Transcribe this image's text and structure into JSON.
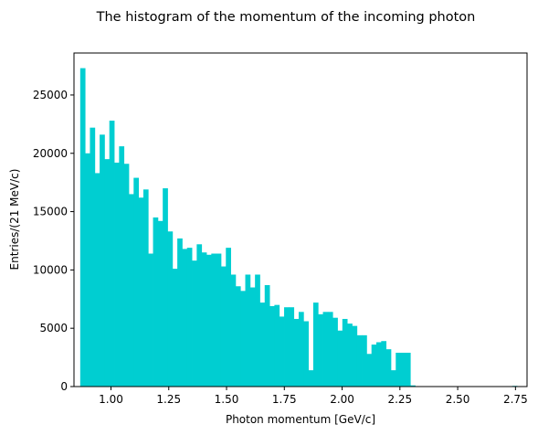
{
  "chart_data": {
    "type": "bar",
    "title": "The histogram of the momentum of the incoming photon",
    "xlabel": "Photon momentum [GeV/c]",
    "ylabel": "Entries/(21 MeV/c)",
    "xlim": [
      0.84,
      2.8
    ],
    "ylim": [
      0,
      28600
    ],
    "bin_width": 0.021,
    "x_ticks": [
      "1.00",
      "1.25",
      "1.50",
      "1.75",
      "2.00",
      "2.25",
      "2.50",
      "2.75"
    ],
    "y_ticks": [
      "0",
      "5000",
      "10000",
      "15000",
      "20000",
      "25000"
    ],
    "bar_color": "#00CED1",
    "grid": false,
    "legend": "none",
    "bins": [
      {
        "x": 0.867,
        "y": 27300
      },
      {
        "x": 0.888,
        "y": 20000
      },
      {
        "x": 0.909,
        "y": 22200
      },
      {
        "x": 0.93,
        "y": 18300
      },
      {
        "x": 0.951,
        "y": 21600
      },
      {
        "x": 0.972,
        "y": 19500
      },
      {
        "x": 0.993,
        "y": 22800
      },
      {
        "x": 1.014,
        "y": 19200
      },
      {
        "x": 1.035,
        "y": 20600
      },
      {
        "x": 1.056,
        "y": 19100
      },
      {
        "x": 1.077,
        "y": 16500
      },
      {
        "x": 1.098,
        "y": 17900
      },
      {
        "x": 1.119,
        "y": 16200
      },
      {
        "x": 1.14,
        "y": 16900
      },
      {
        "x": 1.161,
        "y": 11400
      },
      {
        "x": 1.182,
        "y": 14500
      },
      {
        "x": 1.203,
        "y": 14200
      },
      {
        "x": 1.224,
        "y": 17000
      },
      {
        "x": 1.245,
        "y": 13300
      },
      {
        "x": 1.266,
        "y": 10100
      },
      {
        "x": 1.287,
        "y": 12700
      },
      {
        "x": 1.308,
        "y": 11800
      },
      {
        "x": 1.329,
        "y": 11900
      },
      {
        "x": 1.35,
        "y": 10800
      },
      {
        "x": 1.371,
        "y": 12200
      },
      {
        "x": 1.392,
        "y": 11500
      },
      {
        "x": 1.413,
        "y": 11300
      },
      {
        "x": 1.434,
        "y": 11400
      },
      {
        "x": 1.455,
        "y": 11400
      },
      {
        "x": 1.476,
        "y": 10300
      },
      {
        "x": 1.497,
        "y": 11900
      },
      {
        "x": 1.518,
        "y": 9600
      },
      {
        "x": 1.539,
        "y": 8600
      },
      {
        "x": 1.56,
        "y": 8200
      },
      {
        "x": 1.581,
        "y": 9600
      },
      {
        "x": 1.602,
        "y": 8500
      },
      {
        "x": 1.623,
        "y": 9600
      },
      {
        "x": 1.644,
        "y": 7200
      },
      {
        "x": 1.665,
        "y": 8700
      },
      {
        "x": 1.686,
        "y": 6900
      },
      {
        "x": 1.707,
        "y": 7000
      },
      {
        "x": 1.728,
        "y": 6000
      },
      {
        "x": 1.749,
        "y": 6800
      },
      {
        "x": 1.77,
        "y": 6800
      },
      {
        "x": 1.791,
        "y": 5800
      },
      {
        "x": 1.812,
        "y": 6400
      },
      {
        "x": 1.833,
        "y": 5600
      },
      {
        "x": 1.854,
        "y": 1400
      },
      {
        "x": 1.875,
        "y": 7200
      },
      {
        "x": 1.896,
        "y": 6200
      },
      {
        "x": 1.917,
        "y": 6400
      },
      {
        "x": 1.938,
        "y": 6400
      },
      {
        "x": 1.959,
        "y": 5900
      },
      {
        "x": 1.98,
        "y": 4800
      },
      {
        "x": 2.001,
        "y": 5800
      },
      {
        "x": 2.022,
        "y": 5400
      },
      {
        "x": 2.043,
        "y": 5200
      },
      {
        "x": 2.064,
        "y": 4400
      },
      {
        "x": 2.085,
        "y": 4400
      },
      {
        "x": 2.106,
        "y": 2800
      },
      {
        "x": 2.127,
        "y": 3600
      },
      {
        "x": 2.148,
        "y": 3800
      },
      {
        "x": 2.169,
        "y": 3900
      },
      {
        "x": 2.19,
        "y": 3200
      },
      {
        "x": 2.211,
        "y": 1400
      },
      {
        "x": 2.232,
        "y": 2900
      },
      {
        "x": 2.253,
        "y": 2900
      },
      {
        "x": 2.274,
        "y": 2900
      },
      {
        "x": 2.295,
        "y": 100
      },
      {
        "x": 2.316,
        "y": 0
      },
      {
        "x": 2.337,
        "y": 0
      },
      {
        "x": 2.358,
        "y": 0
      },
      {
        "x": 2.379,
        "y": 0
      },
      {
        "x": 2.4,
        "y": 0
      },
      {
        "x": 2.421,
        "y": 0
      },
      {
        "x": 2.442,
        "y": 0
      },
      {
        "x": 2.463,
        "y": 0
      },
      {
        "x": 2.484,
        "y": 0
      },
      {
        "x": 2.505,
        "y": 0
      },
      {
        "x": 2.526,
        "y": 0
      },
      {
        "x": 2.547,
        "y": 0
      },
      {
        "x": 2.568,
        "y": 0
      },
      {
        "x": 2.589,
        "y": 0
      },
      {
        "x": 2.61,
        "y": 0
      },
      {
        "x": 2.631,
        "y": 0
      },
      {
        "x": 2.652,
        "y": 0
      },
      {
        "x": 2.673,
        "y": 0
      },
      {
        "x": 2.694,
        "y": 0
      },
      {
        "x": 2.715,
        "y": 0
      },
      {
        "x": 2.736,
        "y": 60
      }
    ]
  }
}
